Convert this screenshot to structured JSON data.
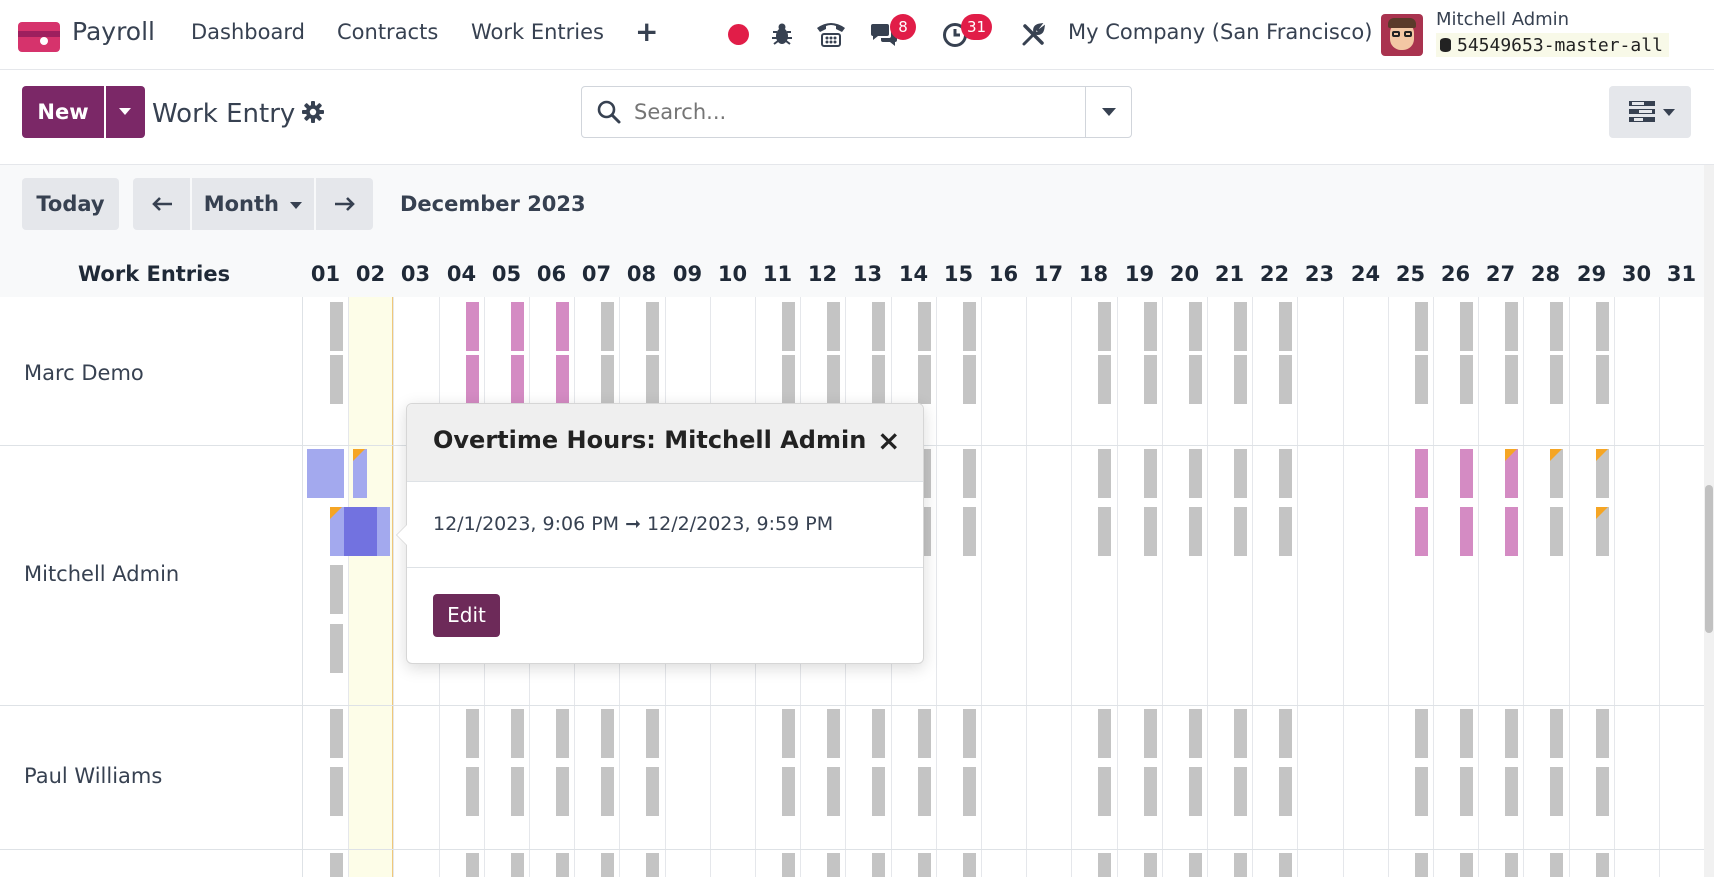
{
  "topnav": {
    "app_name": "Payroll",
    "menu": [
      "Dashboard",
      "Contracts",
      "Work Entries"
    ],
    "messages_count": "8",
    "activities_count": "31",
    "company": "My Company (San Francisco)",
    "user_name": "Mitchell Admin",
    "database": "54549653-master-all"
  },
  "control": {
    "new_label": "New",
    "title": "Work Entry",
    "search_placeholder": "Search..."
  },
  "calendar": {
    "today_label": "Today",
    "scale_label": "Month",
    "period": "December 2023",
    "rows_header": "Work Entries",
    "days": [
      "01",
      "02",
      "03",
      "04",
      "05",
      "06",
      "07",
      "08",
      "09",
      "10",
      "11",
      "12",
      "13",
      "14",
      "15",
      "16",
      "17",
      "18",
      "19",
      "20",
      "21",
      "22",
      "23",
      "24",
      "25",
      "26",
      "27",
      "28",
      "29",
      "30",
      "31"
    ],
    "rows": [
      "Marc Demo",
      "Mitchell Admin",
      "Paul Williams"
    ]
  },
  "popover": {
    "title": "Overtime Hours: Mitchell Admin",
    "time_range": "12/1/2023, 9:06 PM ➞ 12/2/2023, 9:59 PM",
    "edit_label": "Edit"
  },
  "colors": {
    "brand": "#7b2867",
    "attendance": "#c4c4c4",
    "leave": "#d48bc3",
    "overtime": "#a3a9ee",
    "overtime_selected": "#7272e0",
    "warning": "#f5a524",
    "today": "#fdfde8"
  }
}
